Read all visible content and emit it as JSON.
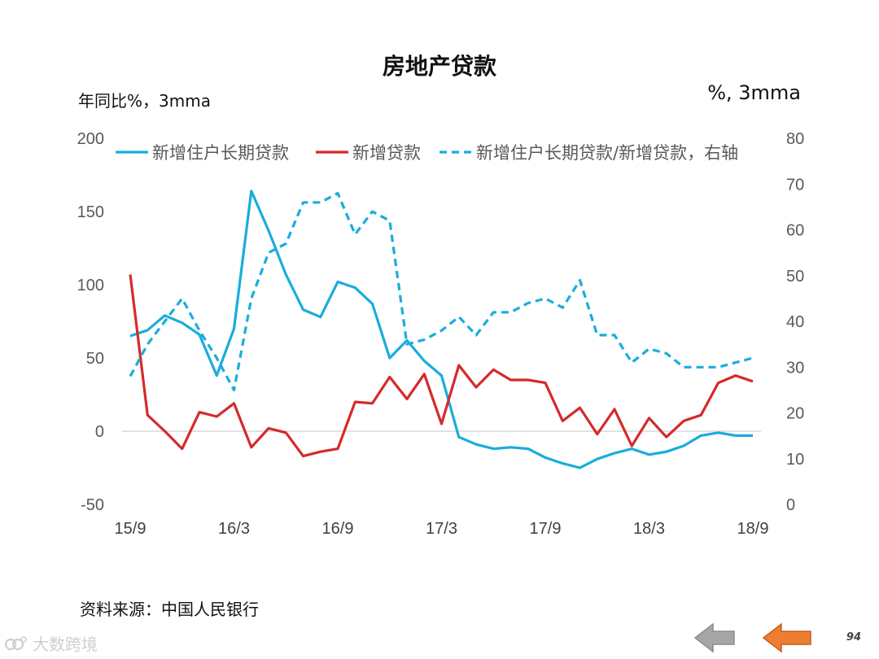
{
  "chart_data": {
    "type": "line",
    "title": "房地产贷款",
    "ylabel_left": "年同比%，3mma",
    "ylabel_right": "%, 3mma",
    "x_tick_labels": [
      "15/9",
      "16/3",
      "16/9",
      "17/3",
      "17/9",
      "18/3",
      "18/9"
    ],
    "x_tick_positions": [
      0,
      6,
      12,
      18,
      24,
      30,
      36
    ],
    "x": [
      "15/9",
      "15/10",
      "15/11",
      "15/12",
      "16/1",
      "16/2",
      "16/3",
      "16/4",
      "16/5",
      "16/6",
      "16/7",
      "16/8",
      "16/9",
      "16/10",
      "16/11",
      "16/12",
      "17/1",
      "17/2",
      "17/3",
      "17/4",
      "17/5",
      "17/6",
      "17/7",
      "17/8",
      "17/9",
      "17/10",
      "17/11",
      "17/12",
      "18/1",
      "18/2",
      "18/3",
      "18/4",
      "18/5",
      "18/6",
      "18/7",
      "18/8",
      "18/9"
    ],
    "ylim_left": [
      -50,
      200
    ],
    "yticks_left": [
      -50,
      0,
      50,
      100,
      150,
      200
    ],
    "ylim_right": [
      0,
      80
    ],
    "yticks_right": [
      0,
      10,
      20,
      30,
      40,
      50,
      60,
      70,
      80
    ],
    "legend_position": "top",
    "series": [
      {
        "name": "新增住户长期贷款",
        "axis": "left",
        "color": "#1aaddc",
        "style": "solid",
        "values": [
          65,
          69,
          79,
          74,
          66,
          38,
          70,
          164,
          137,
          107,
          83,
          78,
          102,
          98,
          87,
          50,
          62,
          48,
          38,
          -4,
          -9,
          -12,
          -11,
          -12,
          -18,
          -22,
          -25,
          -19,
          -15,
          -12,
          -16,
          -14,
          -10,
          -3,
          -1,
          -3,
          -3
        ]
      },
      {
        "name": "新增贷款",
        "axis": "left",
        "color": "#d62a2a",
        "style": "solid",
        "values": [
          107,
          11,
          0,
          -12,
          13,
          10,
          19,
          -11,
          2,
          -1,
          -17,
          -14,
          -12,
          20,
          19,
          37,
          22,
          39,
          5,
          45,
          30,
          42,
          35,
          35,
          33,
          7,
          16,
          -2,
          15,
          -10,
          9,
          -4,
          7,
          11,
          33,
          38,
          34
        ]
      },
      {
        "name": "新增住户长期贷款/新增贷款，右轴",
        "axis": "right",
        "color": "#1aaddc",
        "style": "dashed",
        "values": [
          28,
          35,
          40,
          45,
          38,
          32,
          25,
          45,
          55,
          57,
          66,
          66,
          68,
          59,
          64,
          62,
          35,
          36,
          38,
          41,
          37,
          42,
          42,
          44,
          45,
          43,
          49,
          37,
          37,
          31,
          34,
          33,
          30,
          30,
          30,
          31,
          32
        ]
      }
    ]
  },
  "source_text": "资料来源：中国人民银行",
  "watermark_text": "大数跨境",
  "page_number": "94",
  "nav": {
    "prev_color": "#a6a6a6",
    "next_color": "#ed7d31"
  }
}
